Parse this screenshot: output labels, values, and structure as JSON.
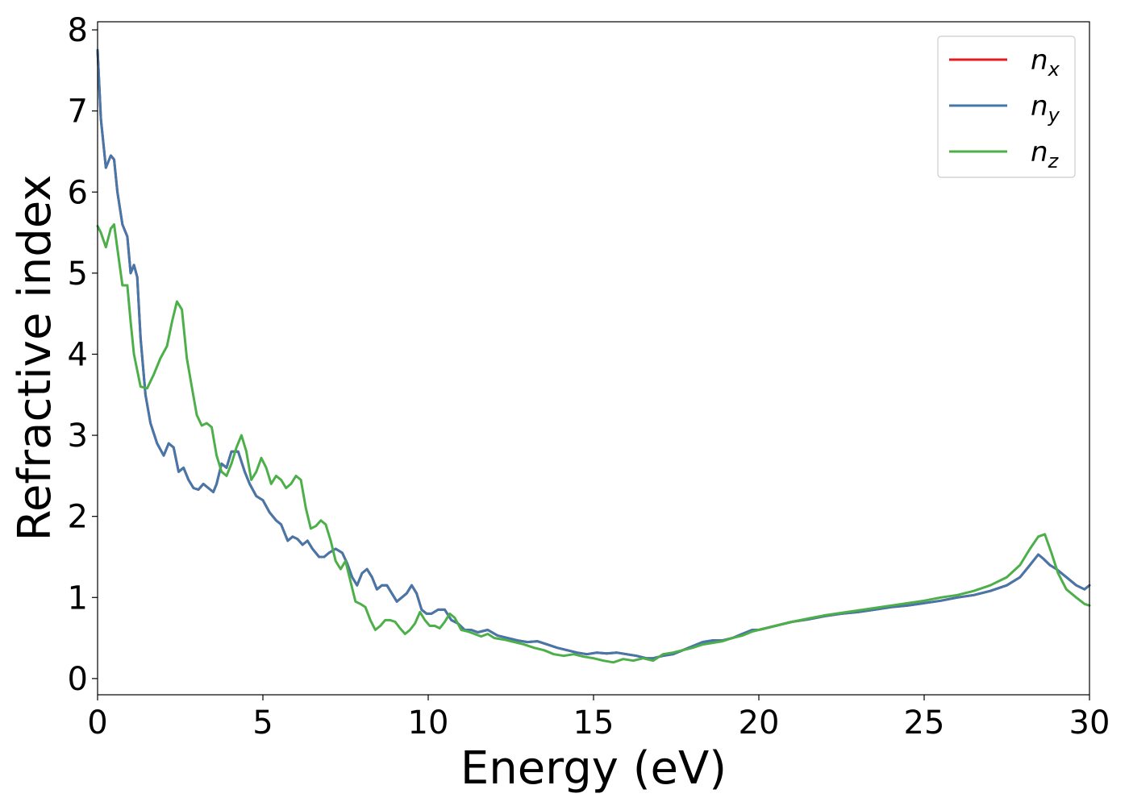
{
  "chart_data": {
    "type": "line",
    "xlabel": "Energy (eV)",
    "ylabel": "Refractive index",
    "xlim": [
      0,
      30
    ],
    "ylim": [
      -0.2,
      8.1
    ],
    "xticks": [
      "0",
      "5",
      "10",
      "15",
      "20",
      "25",
      "30"
    ],
    "yticks": [
      "0",
      "1",
      "2",
      "3",
      "4",
      "5",
      "6",
      "7",
      "8"
    ],
    "grid": false,
    "legend_position": "top-right",
    "series": [
      {
        "name": "n",
        "subscript": "x",
        "color": "#e41a1c",
        "x": [
          0,
          0.1,
          0.25,
          0.4,
          0.5,
          0.6,
          0.75,
          0.9,
          1.0,
          1.1,
          1.2,
          1.3,
          1.45,
          1.6,
          1.8,
          2.0,
          2.15,
          2.3,
          2.45,
          2.6,
          2.75,
          2.9,
          3.05,
          3.2,
          3.35,
          3.5,
          3.6,
          3.75,
          3.9,
          4.05,
          4.25,
          4.45,
          4.6,
          4.8,
          5.0,
          5.2,
          5.4,
          5.55,
          5.75,
          5.9,
          6.05,
          6.2,
          6.35,
          6.5,
          6.7,
          6.85,
          7.0,
          7.2,
          7.4,
          7.55,
          7.7,
          7.85,
          8.0,
          8.15,
          8.3,
          8.45,
          8.6,
          8.75,
          8.9,
          9.05,
          9.2,
          9.35,
          9.5,
          9.65,
          9.8,
          9.95,
          10.1,
          10.3,
          10.5,
          10.7,
          10.9,
          11.1,
          11.3,
          11.5,
          11.8,
          12.1,
          12.4,
          12.7,
          13.0,
          13.3,
          13.6,
          13.9,
          14.2,
          14.5,
          14.8,
          15.1,
          15.4,
          15.7,
          16.0,
          16.3,
          16.6,
          16.8,
          17.1,
          17.4,
          17.7,
          18.0,
          18.3,
          18.6,
          18.9,
          19.2,
          19.5,
          19.8,
          20.0,
          20.5,
          21.0,
          21.5,
          22.0,
          22.5,
          23.0,
          23.5,
          24.0,
          24.5,
          25.0,
          25.5,
          26.0,
          26.5,
          27.0,
          27.5,
          27.9,
          28.2,
          28.45,
          28.6,
          28.8,
          29.0,
          29.3,
          29.6,
          29.85,
          30.0
        ],
        "y": [
          7.75,
          6.9,
          6.3,
          6.45,
          6.4,
          6.0,
          5.6,
          5.45,
          5.0,
          5.1,
          4.95,
          4.2,
          3.5,
          3.15,
          2.9,
          2.75,
          2.9,
          2.85,
          2.55,
          2.6,
          2.45,
          2.35,
          2.33,
          2.4,
          2.35,
          2.3,
          2.4,
          2.65,
          2.6,
          2.8,
          2.8,
          2.55,
          2.4,
          2.25,
          2.2,
          2.05,
          1.95,
          1.9,
          1.7,
          1.75,
          1.72,
          1.65,
          1.7,
          1.6,
          1.5,
          1.5,
          1.55,
          1.6,
          1.55,
          1.42,
          1.25,
          1.15,
          1.3,
          1.35,
          1.25,
          1.1,
          1.15,
          1.15,
          1.05,
          0.95,
          1.0,
          1.05,
          1.15,
          1.05,
          0.85,
          0.8,
          0.8,
          0.85,
          0.85,
          0.72,
          0.68,
          0.6,
          0.6,
          0.57,
          0.6,
          0.53,
          0.5,
          0.47,
          0.45,
          0.46,
          0.42,
          0.38,
          0.35,
          0.32,
          0.3,
          0.32,
          0.31,
          0.32,
          0.3,
          0.28,
          0.25,
          0.25,
          0.28,
          0.3,
          0.35,
          0.4,
          0.45,
          0.47,
          0.47,
          0.5,
          0.55,
          0.6,
          0.6,
          0.65,
          0.7,
          0.73,
          0.77,
          0.8,
          0.82,
          0.85,
          0.88,
          0.9,
          0.93,
          0.96,
          1.0,
          1.03,
          1.08,
          1.15,
          1.25,
          1.4,
          1.53,
          1.48,
          1.4,
          1.35,
          1.25,
          1.15,
          1.1,
          1.15
        ]
      },
      {
        "name": "n",
        "subscript": "y",
        "color": "#4477aa",
        "x": [
          0,
          0.1,
          0.25,
          0.4,
          0.5,
          0.6,
          0.75,
          0.9,
          1.0,
          1.1,
          1.2,
          1.3,
          1.45,
          1.6,
          1.8,
          2.0,
          2.15,
          2.3,
          2.45,
          2.6,
          2.75,
          2.9,
          3.05,
          3.2,
          3.35,
          3.5,
          3.6,
          3.75,
          3.9,
          4.05,
          4.25,
          4.45,
          4.6,
          4.8,
          5.0,
          5.2,
          5.4,
          5.55,
          5.75,
          5.9,
          6.05,
          6.2,
          6.35,
          6.5,
          6.7,
          6.85,
          7.0,
          7.2,
          7.4,
          7.55,
          7.7,
          7.85,
          8.0,
          8.15,
          8.3,
          8.45,
          8.6,
          8.75,
          8.9,
          9.05,
          9.2,
          9.35,
          9.5,
          9.65,
          9.8,
          9.95,
          10.1,
          10.3,
          10.5,
          10.7,
          10.9,
          11.1,
          11.3,
          11.5,
          11.8,
          12.1,
          12.4,
          12.7,
          13.0,
          13.3,
          13.6,
          13.9,
          14.2,
          14.5,
          14.8,
          15.1,
          15.4,
          15.7,
          16.0,
          16.3,
          16.6,
          16.8,
          17.1,
          17.4,
          17.7,
          18.0,
          18.3,
          18.6,
          18.9,
          19.2,
          19.5,
          19.8,
          20.0,
          20.5,
          21.0,
          21.5,
          22.0,
          22.5,
          23.0,
          23.5,
          24.0,
          24.5,
          25.0,
          25.5,
          26.0,
          26.5,
          27.0,
          27.5,
          27.9,
          28.2,
          28.45,
          28.6,
          28.8,
          29.0,
          29.3,
          29.6,
          29.85,
          30.0
        ],
        "y": [
          7.75,
          6.9,
          6.3,
          6.45,
          6.4,
          6.0,
          5.6,
          5.45,
          5.0,
          5.1,
          4.95,
          4.2,
          3.5,
          3.15,
          2.9,
          2.75,
          2.9,
          2.85,
          2.55,
          2.6,
          2.45,
          2.35,
          2.33,
          2.4,
          2.35,
          2.3,
          2.4,
          2.65,
          2.6,
          2.8,
          2.8,
          2.55,
          2.4,
          2.25,
          2.2,
          2.05,
          1.95,
          1.9,
          1.7,
          1.75,
          1.72,
          1.65,
          1.7,
          1.6,
          1.5,
          1.5,
          1.55,
          1.6,
          1.55,
          1.42,
          1.25,
          1.15,
          1.3,
          1.35,
          1.25,
          1.1,
          1.15,
          1.15,
          1.05,
          0.95,
          1.0,
          1.05,
          1.15,
          1.05,
          0.85,
          0.8,
          0.8,
          0.85,
          0.85,
          0.72,
          0.68,
          0.6,
          0.6,
          0.57,
          0.6,
          0.53,
          0.5,
          0.47,
          0.45,
          0.46,
          0.42,
          0.38,
          0.35,
          0.32,
          0.3,
          0.32,
          0.31,
          0.32,
          0.3,
          0.28,
          0.25,
          0.25,
          0.28,
          0.3,
          0.35,
          0.4,
          0.45,
          0.47,
          0.47,
          0.5,
          0.55,
          0.6,
          0.6,
          0.65,
          0.7,
          0.73,
          0.77,
          0.8,
          0.82,
          0.85,
          0.88,
          0.9,
          0.93,
          0.96,
          1.0,
          1.03,
          1.08,
          1.15,
          1.25,
          1.4,
          1.53,
          1.48,
          1.4,
          1.35,
          1.25,
          1.15,
          1.1,
          1.15
        ]
      },
      {
        "name": "n",
        "subscript": "z",
        "color": "#4daf4a",
        "x": [
          0,
          0.1,
          0.25,
          0.4,
          0.5,
          0.6,
          0.75,
          0.9,
          1.0,
          1.1,
          1.3,
          1.5,
          1.7,
          1.9,
          2.1,
          2.25,
          2.4,
          2.55,
          2.7,
          2.85,
          3.0,
          3.15,
          3.3,
          3.45,
          3.6,
          3.75,
          3.9,
          4.05,
          4.2,
          4.35,
          4.5,
          4.65,
          4.8,
          4.95,
          5.1,
          5.25,
          5.4,
          5.55,
          5.7,
          5.85,
          6.0,
          6.15,
          6.3,
          6.45,
          6.6,
          6.75,
          6.9,
          7.05,
          7.2,
          7.35,
          7.5,
          7.65,
          7.8,
          7.95,
          8.1,
          8.25,
          8.4,
          8.55,
          8.7,
          8.85,
          9.0,
          9.15,
          9.3,
          9.45,
          9.6,
          9.75,
          9.9,
          10.05,
          10.2,
          10.35,
          10.5,
          10.65,
          10.8,
          11.0,
          11.2,
          11.4,
          11.6,
          11.8,
          12.0,
          12.3,
          12.6,
          12.9,
          13.2,
          13.5,
          13.8,
          14.1,
          14.4,
          14.7,
          15.0,
          15.3,
          15.6,
          15.9,
          16.2,
          16.5,
          16.8,
          17.1,
          17.4,
          17.7,
          18.0,
          18.3,
          18.6,
          18.9,
          19.2,
          19.5,
          19.8,
          20.0,
          20.5,
          21.0,
          21.5,
          22.0,
          22.5,
          23.0,
          23.5,
          24.0,
          24.5,
          25.0,
          25.5,
          26.0,
          26.5,
          27.0,
          27.5,
          27.9,
          28.2,
          28.45,
          28.65,
          28.85,
          29.05,
          29.3,
          29.6,
          29.85,
          30.0
        ],
        "y": [
          5.58,
          5.5,
          5.32,
          5.55,
          5.6,
          5.3,
          4.85,
          4.85,
          4.4,
          4.0,
          3.6,
          3.58,
          3.75,
          3.95,
          4.1,
          4.4,
          4.65,
          4.55,
          3.95,
          3.6,
          3.25,
          3.12,
          3.15,
          3.1,
          2.75,
          2.55,
          2.5,
          2.65,
          2.85,
          3.0,
          2.8,
          2.45,
          2.55,
          2.72,
          2.6,
          2.4,
          2.5,
          2.45,
          2.35,
          2.4,
          2.5,
          2.45,
          2.1,
          1.85,
          1.88,
          1.95,
          1.9,
          1.7,
          1.45,
          1.35,
          1.45,
          1.2,
          0.95,
          0.92,
          0.88,
          0.72,
          0.6,
          0.65,
          0.72,
          0.72,
          0.7,
          0.62,
          0.55,
          0.6,
          0.68,
          0.82,
          0.72,
          0.65,
          0.65,
          0.62,
          0.7,
          0.8,
          0.75,
          0.6,
          0.58,
          0.55,
          0.52,
          0.55,
          0.5,
          0.48,
          0.45,
          0.42,
          0.38,
          0.35,
          0.3,
          0.28,
          0.3,
          0.27,
          0.25,
          0.22,
          0.2,
          0.24,
          0.22,
          0.25,
          0.22,
          0.3,
          0.32,
          0.35,
          0.38,
          0.42,
          0.44,
          0.46,
          0.5,
          0.53,
          0.58,
          0.6,
          0.65,
          0.7,
          0.74,
          0.78,
          0.81,
          0.84,
          0.87,
          0.9,
          0.93,
          0.96,
          1.0,
          1.03,
          1.08,
          1.15,
          1.25,
          1.4,
          1.6,
          1.75,
          1.78,
          1.55,
          1.3,
          1.1,
          1.0,
          0.92,
          0.9
        ]
      }
    ]
  }
}
